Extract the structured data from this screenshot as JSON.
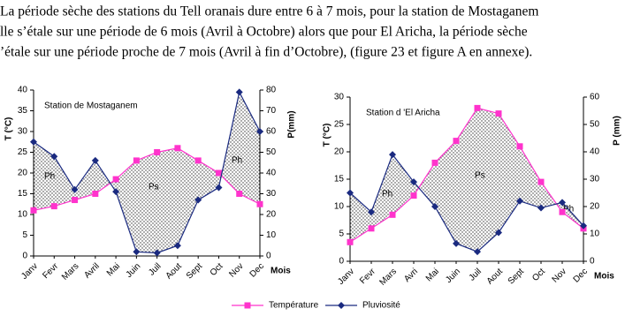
{
  "paragraph": [
    "La période sèche des stations du Tell oranais dure entre 6 à 7 mois, pour la station de Mostaganem",
    "lle s’étale sur une période de 6 mois (Avril à Octobre) alors que pour El Aricha, la période sèche",
    "’étale sur une période proche de 7 mois (Avril à fin d’Octobre), (figure 23 et figure A en annexe)."
  ],
  "chart_data": [
    {
      "type": "line",
      "ylabel": "T (°C)",
      "y2label": "P(mm)",
      "xlabel": "Mois",
      "annotations": [
        "Station de Mostaganem",
        "Ph",
        "Ps",
        "Ph"
      ],
      "categories": [
        "Janv",
        "Fevr",
        "Mars",
        "Avril",
        "Mai",
        "Juin",
        "Juil",
        "Aout",
        "Sept",
        "Oct",
        "Nov",
        "Dec"
      ],
      "series": [
        {
          "name": "Température",
          "color": "#ff33cc",
          "marker": "square",
          "values": [
            11,
            12,
            13.5,
            15,
            18.5,
            23,
            25,
            26,
            23,
            20,
            15,
            12.5
          ]
        },
        {
          "name": "Pluviosité",
          "color": "#1a2a80",
          "marker": "diamond",
          "axis": "y2",
          "values": [
            55,
            48,
            32,
            46,
            31,
            2,
            1.5,
            5,
            27,
            33,
            79,
            60
          ]
        }
      ],
      "ylim": [
        0,
        40
      ],
      "yticks": [
        0,
        5,
        10,
        15,
        20,
        25,
        30,
        35,
        40
      ],
      "y2lim": [
        0,
        80
      ],
      "y2ticks": [
        0,
        10,
        20,
        30,
        40,
        50,
        60,
        70,
        80
      ]
    },
    {
      "type": "line",
      "ylabel": "T (°C)",
      "y2label": "P (mm)",
      "xlabel": "Mois",
      "annotations": [
        "Station d 'El Aricha",
        "Ph",
        "Ps",
        "Ph"
      ],
      "categories": [
        "Janv",
        "Fevr",
        "Mars",
        "Avri",
        "Mai",
        "Juin",
        "Juil",
        "Aout",
        "Sept",
        "Oct",
        "Nov",
        "Dec"
      ],
      "series": [
        {
          "name": "Température",
          "color": "#ff33cc",
          "marker": "square",
          "values": [
            3.5,
            6,
            8.5,
            12,
            18,
            22,
            28,
            27,
            21,
            14.5,
            9,
            6
          ]
        },
        {
          "name": "Pluviosité",
          "color": "#1a2a80",
          "marker": "diamond",
          "axis": "y2",
          "values": [
            25,
            18,
            39,
            29,
            20,
            6.5,
            3.5,
            10.5,
            22,
            19.5,
            21.5,
            13
          ]
        }
      ],
      "ylim": [
        0,
        30
      ],
      "yticks": [
        0,
        5,
        10,
        15,
        20,
        25,
        30
      ],
      "y2lim": [
        0,
        60
      ],
      "y2ticks": [
        0,
        10,
        20,
        30,
        40,
        50,
        60
      ]
    }
  ]
}
